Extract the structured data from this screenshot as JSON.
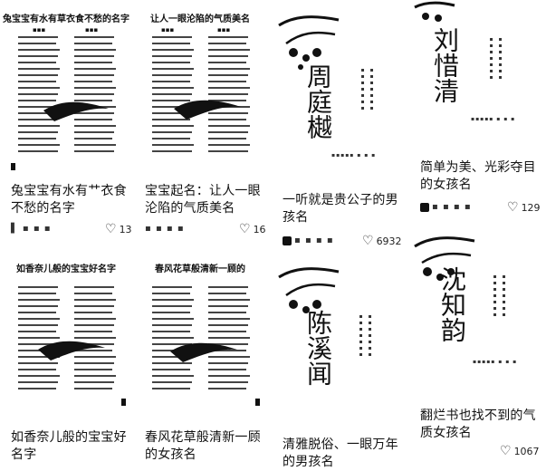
{
  "cards": [
    {
      "cover_title": "兔宝宝有水有草衣食不愁的名字",
      "caption": "兔宝宝有水有艹衣食不愁的名字",
      "likes": "13"
    },
    {
      "cover_title": "让人一眼沦陷的气质美名",
      "caption": "宝宝起名：让人一眼沦陷的气质美名",
      "likes": "16"
    },
    {
      "cover_title": "如香奈儿般的宝宝好名字",
      "caption": "如香奈儿般的宝宝好名字",
      "likes": ""
    },
    {
      "cover_title": "春风花草般清新一顾的",
      "caption": "春风花草般清新一顾的女孩名",
      "likes": ""
    },
    {
      "poster_name": "周庭樾",
      "caption": "一听就是贵公子的男孩名",
      "likes": "6932"
    },
    {
      "poster_name": "陈溪闻",
      "caption": "清雅脱俗、一眼万年的男孩名",
      "likes": ""
    },
    {
      "poster_name": "刘惜清",
      "caption": "简单为美、光彩夺目的女孩名",
      "likes": "129"
    },
    {
      "poster_name": "沈知韵",
      "caption": "翻烂书也找不到的气质女孩名",
      "likes": "1067"
    }
  ]
}
